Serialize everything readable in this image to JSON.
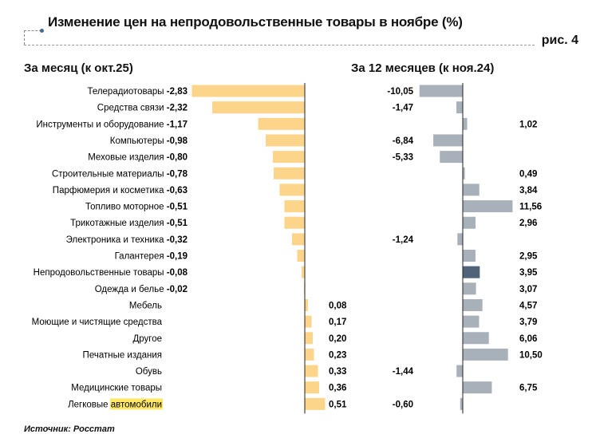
{
  "title": "Изменение цен на непродовольственные товары в ноябре (%)",
  "figure_label": "рис. 4",
  "source": "Источник: Росстат",
  "colors": {
    "monthly_bar": "#fdd58a",
    "yearly_bar": "#a8b1ba",
    "total_bar": "#506378",
    "highlight": "#ffe866"
  },
  "chart_data": [
    {
      "type": "bar",
      "orientation": "horizontal",
      "title": "За месяц (к окт.25)",
      "categories": [
        "Телерадиотовары",
        "Средства связи",
        "Инструменты и оборудование",
        "Компьютеры",
        "Меховые изделия",
        "Строительные материалы",
        "Парфюмерия и косметика",
        "Топливо моторное",
        "Трикотажные изделия",
        "Электроника и техника",
        "Галантерея",
        "Непродовольственные товары",
        "Одежда и белье",
        "Мебель",
        "Моющие и чистящие средства",
        "Другое",
        "Печатные издания",
        "Обувь",
        "Медицинские товары",
        "Легковые автомобили"
      ],
      "values": [
        -2.83,
        -2.32,
        -1.17,
        -0.98,
        -0.8,
        -0.78,
        -0.63,
        -0.51,
        -0.51,
        -0.32,
        -0.19,
        -0.08,
        -0.02,
        0.08,
        0.17,
        0.2,
        0.23,
        0.33,
        0.36,
        0.51
      ],
      "labels": [
        "-2,83",
        "-2,32",
        "-1,17",
        "-0,98",
        "-0,80",
        "-0,78",
        "-0,63",
        "-0,51",
        "-0,51",
        "-0,32",
        "-0,19",
        "-0,08",
        "-0,02",
        "0,08",
        "0,17",
        "0,20",
        "0,23",
        "0,33",
        "0,36",
        "0,51"
      ],
      "highlighted_word": "автомобили"
    },
    {
      "type": "bar",
      "orientation": "horizontal",
      "title": "За 12 месяцев (к ноя.24)",
      "values": [
        -10.05,
        -1.47,
        1.02,
        -6.84,
        -5.33,
        0.49,
        3.84,
        11.56,
        2.96,
        -1.24,
        2.95,
        3.95,
        3.07,
        4.57,
        3.79,
        6.06,
        10.5,
        -1.44,
        6.75,
        -0.6
      ],
      "labels": [
        "-10,05",
        "-1,47",
        "1,02",
        "-6,84",
        "-5,33",
        "0,49",
        "3,84",
        "11,56",
        "2,96",
        "-1,24",
        "2,95",
        "3,95",
        "3,07",
        "4,57",
        "3,79",
        "6,06",
        "10,50",
        "-1,44",
        "6,75",
        "-0,60"
      ],
      "highlight_index": 11
    }
  ]
}
